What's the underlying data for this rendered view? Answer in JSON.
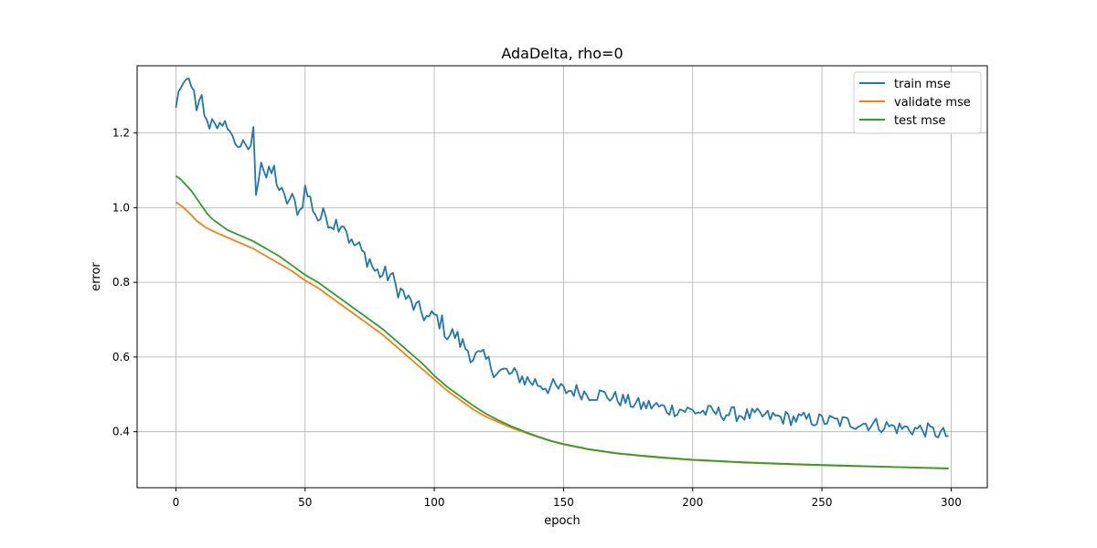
{
  "chart_data": {
    "type": "line",
    "title": "AdaDelta, rho=0",
    "xlabel": "epoch",
    "ylabel": "error",
    "xlim": [
      -15,
      314
    ],
    "ylim": [
      0.25,
      1.38
    ],
    "xticks": [
      0,
      50,
      100,
      150,
      200,
      250,
      300
    ],
    "yticks": [
      0.4,
      0.6,
      0.8,
      1.0,
      1.2
    ],
    "ytick_labels": [
      "0.4",
      "0.6",
      "0.8",
      "1.0",
      "1.2"
    ],
    "grid": true,
    "legend_position": "top-right",
    "x": {
      "start": 0,
      "end": 299
    },
    "series": [
      {
        "name": "train mse",
        "color": "#1f77b4",
        "keypoints": [
          [
            0,
            1.26
          ],
          [
            1,
            1.32
          ],
          [
            3,
            1.31
          ],
          [
            4,
            1.335
          ],
          [
            6,
            1.34
          ],
          [
            8,
            1.25
          ],
          [
            10,
            1.29
          ],
          [
            12,
            1.22
          ],
          [
            15,
            1.24
          ],
          [
            18,
            1.2
          ],
          [
            20,
            1.23
          ],
          [
            22,
            1.18
          ],
          [
            25,
            1.17
          ],
          [
            27,
            1.15
          ],
          [
            29,
            1.17
          ],
          [
            30,
            1.2
          ],
          [
            31,
            1.05
          ],
          [
            33,
            1.13
          ],
          [
            35,
            1.08
          ],
          [
            38,
            1.1
          ],
          [
            40,
            1.05
          ],
          [
            42,
            1.02
          ],
          [
            45,
            1.02
          ],
          [
            48,
            0.99
          ],
          [
            50,
            1.05
          ],
          [
            52,
            1.02
          ],
          [
            55,
            0.97
          ],
          [
            58,
            0.98
          ],
          [
            60,
            0.96
          ],
          [
            63,
            0.96
          ],
          [
            65,
            0.96
          ],
          [
            68,
            0.9
          ],
          [
            70,
            0.9
          ],
          [
            73,
            0.87
          ],
          [
            75,
            0.86
          ],
          [
            77,
            0.83
          ],
          [
            80,
            0.82
          ],
          [
            83,
            0.82
          ],
          [
            85,
            0.79
          ],
          [
            88,
            0.77
          ],
          [
            90,
            0.75
          ],
          [
            93,
            0.73
          ],
          [
            95,
            0.72
          ],
          [
            98,
            0.7
          ],
          [
            100,
            0.71
          ],
          [
            103,
            0.69
          ],
          [
            105,
            0.66
          ],
          [
            108,
            0.66
          ],
          [
            110,
            0.64
          ],
          [
            113,
            0.62
          ],
          [
            115,
            0.6
          ],
          [
            118,
            0.6
          ],
          [
            120,
            0.59
          ],
          [
            123,
            0.57
          ],
          [
            125,
            0.56
          ],
          [
            128,
            0.56
          ],
          [
            130,
            0.55
          ],
          [
            133,
            0.55
          ],
          [
            135,
            0.54
          ],
          [
            140,
            0.53
          ],
          [
            145,
            0.52
          ],
          [
            150,
            0.51
          ],
          [
            155,
            0.51
          ],
          [
            160,
            0.5
          ],
          [
            165,
            0.5
          ],
          [
            170,
            0.49
          ],
          [
            175,
            0.48
          ],
          [
            180,
            0.47
          ],
          [
            185,
            0.47
          ],
          [
            190,
            0.46
          ],
          [
            195,
            0.46
          ],
          [
            200,
            0.455
          ],
          [
            210,
            0.45
          ],
          [
            220,
            0.445
          ],
          [
            230,
            0.44
          ],
          [
            240,
            0.435
          ],
          [
            250,
            0.43
          ],
          [
            260,
            0.425
          ],
          [
            270,
            0.42
          ],
          [
            280,
            0.41
          ],
          [
            290,
            0.405
          ],
          [
            299,
            0.39
          ]
        ]
      },
      {
        "name": "validate mse",
        "color": "#ff7f0e",
        "keypoints": [
          [
            0,
            1.015
          ],
          [
            3,
            1.0
          ],
          [
            6,
            0.98
          ],
          [
            8,
            0.965
          ],
          [
            10,
            0.955
          ],
          [
            12,
            0.945
          ],
          [
            15,
            0.935
          ],
          [
            20,
            0.92
          ],
          [
            25,
            0.905
          ],
          [
            30,
            0.89
          ],
          [
            35,
            0.87
          ],
          [
            40,
            0.85
          ],
          [
            45,
            0.83
          ],
          [
            50,
            0.805
          ],
          [
            55,
            0.785
          ],
          [
            60,
            0.76
          ],
          [
            65,
            0.735
          ],
          [
            70,
            0.71
          ],
          [
            75,
            0.685
          ],
          [
            80,
            0.66
          ],
          [
            85,
            0.63
          ],
          [
            90,
            0.6
          ],
          [
            95,
            0.57
          ],
          [
            100,
            0.54
          ],
          [
            105,
            0.51
          ],
          [
            110,
            0.485
          ],
          [
            115,
            0.46
          ],
          [
            120,
            0.44
          ],
          [
            125,
            0.425
          ],
          [
            130,
            0.41
          ],
          [
            135,
            0.398
          ],
          [
            140,
            0.386
          ],
          [
            145,
            0.375
          ],
          [
            150,
            0.366
          ],
          [
            160,
            0.352
          ],
          [
            170,
            0.342
          ],
          [
            180,
            0.335
          ],
          [
            190,
            0.329
          ],
          [
            200,
            0.324
          ],
          [
            220,
            0.317
          ],
          [
            240,
            0.312
          ],
          [
            260,
            0.308
          ],
          [
            280,
            0.305
          ],
          [
            299,
            0.301
          ]
        ]
      },
      {
        "name": "test mse",
        "color": "#2ca02c",
        "keypoints": [
          [
            0,
            1.085
          ],
          [
            2,
            1.075
          ],
          [
            4,
            1.06
          ],
          [
            6,
            1.045
          ],
          [
            8,
            1.025
          ],
          [
            10,
            1.005
          ],
          [
            12,
            0.985
          ],
          [
            14,
            0.97
          ],
          [
            16,
            0.96
          ],
          [
            18,
            0.95
          ],
          [
            20,
            0.94
          ],
          [
            25,
            0.925
          ],
          [
            30,
            0.91
          ],
          [
            35,
            0.89
          ],
          [
            40,
            0.87
          ],
          [
            45,
            0.845
          ],
          [
            50,
            0.82
          ],
          [
            55,
            0.8
          ],
          [
            60,
            0.775
          ],
          [
            65,
            0.75
          ],
          [
            70,
            0.725
          ],
          [
            75,
            0.7
          ],
          [
            80,
            0.675
          ],
          [
            85,
            0.645
          ],
          [
            90,
            0.615
          ],
          [
            95,
            0.585
          ],
          [
            100,
            0.55
          ],
          [
            105,
            0.52
          ],
          [
            110,
            0.495
          ],
          [
            115,
            0.47
          ],
          [
            120,
            0.448
          ],
          [
            125,
            0.43
          ],
          [
            130,
            0.414
          ],
          [
            135,
            0.4
          ],
          [
            140,
            0.387
          ],
          [
            145,
            0.376
          ],
          [
            150,
            0.367
          ],
          [
            160,
            0.353
          ],
          [
            170,
            0.343
          ],
          [
            180,
            0.336
          ],
          [
            190,
            0.33
          ],
          [
            200,
            0.325
          ],
          [
            220,
            0.318
          ],
          [
            240,
            0.313
          ],
          [
            260,
            0.309
          ],
          [
            280,
            0.305
          ],
          [
            299,
            0.302
          ]
        ]
      }
    ]
  }
}
